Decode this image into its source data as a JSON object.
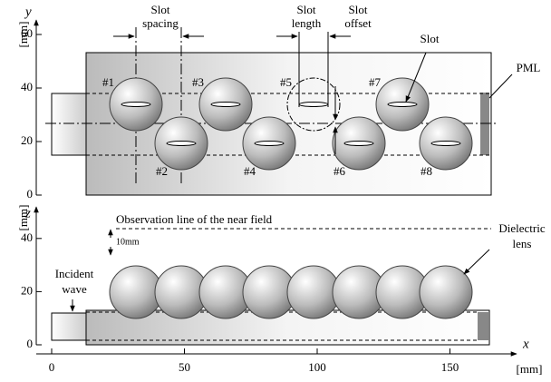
{
  "top_panel": {
    "axis_label": "y",
    "axis_unit": "[mm]",
    "ticks": [
      0,
      20,
      40,
      60
    ],
    "slot_labels": [
      "#1",
      "#2",
      "#3",
      "#4",
      "#5",
      "#6",
      "#7",
      "#8"
    ],
    "slot_spacing": [
      "Slot",
      "spacing"
    ],
    "slot_length": [
      "Slot",
      "length"
    ],
    "slot_offset": [
      "Slot",
      "offset"
    ],
    "slot": "Slot",
    "pml": "PML"
  },
  "bottom_panel": {
    "axis_label": "z",
    "axis_unit": "[mm]",
    "ticks": [
      0,
      20,
      40
    ],
    "observation_line": "Observation line of the near field",
    "gap": "10mm",
    "incident_wave": [
      "Incident",
      "wave"
    ],
    "dielectric_lens": [
      "Dielectric",
      "lens"
    ]
  },
  "x_axis": {
    "axis_label": "x",
    "axis_unit": "[mm]",
    "ticks": [
      0,
      50,
      100,
      150
    ]
  }
}
